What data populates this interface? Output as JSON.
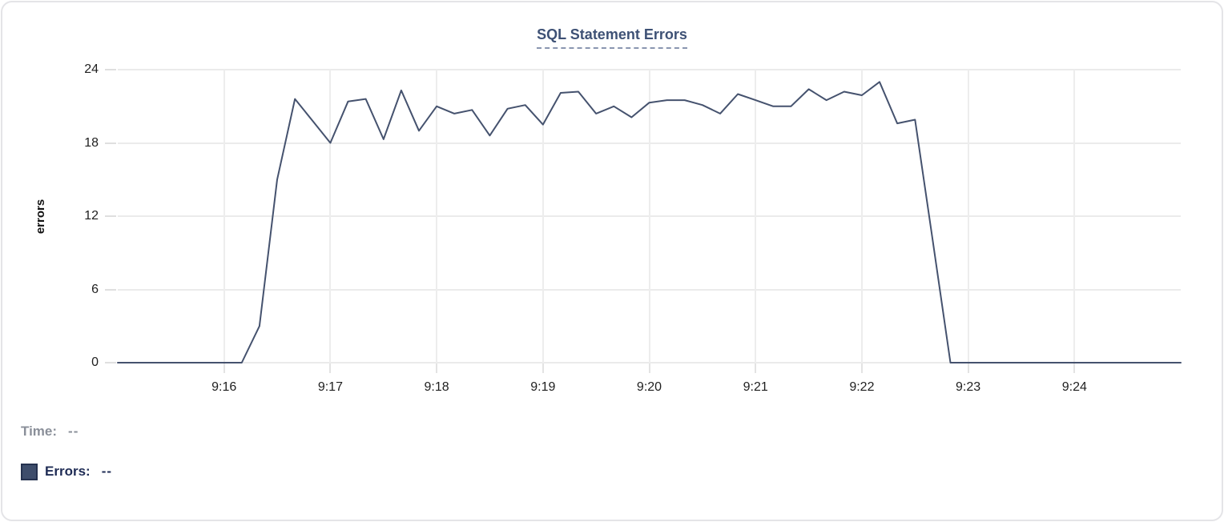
{
  "legend": {
    "time_label": "Time:",
    "time_value": "--",
    "errors_label": "Errors:",
    "errors_value": "--",
    "swatch_color": "#3e4d6b"
  },
  "chart_data": {
    "type": "line",
    "title": "SQL Statement Errors",
    "xlabel": "",
    "ylabel": "errors",
    "ylim": [
      0,
      24
    ],
    "y_tick_labels": [
      "24",
      "18",
      "12",
      "6",
      "0"
    ],
    "y_tick_values": [
      24,
      18,
      12,
      6,
      0
    ],
    "x_tick_labels": [
      "9:16",
      "9:17",
      "9:18",
      "9:19",
      "9:20",
      "9:21",
      "9:22",
      "9:23",
      "9:24"
    ],
    "x_domain": [
      "9:15:00",
      "9:25:00"
    ],
    "grid": true,
    "legend_position": "bottom-left",
    "line_color": "#45526e",
    "series": [
      {
        "name": "Errors",
        "x": [
          "9:15:00",
          "9:15:10",
          "9:15:20",
          "9:15:30",
          "9:15:40",
          "9:15:50",
          "9:16:00",
          "9:16:10",
          "9:16:20",
          "9:16:30",
          "9:16:40",
          "9:16:50",
          "9:17:00",
          "9:17:10",
          "9:17:20",
          "9:17:30",
          "9:17:40",
          "9:17:50",
          "9:18:00",
          "9:18:10",
          "9:18:20",
          "9:18:30",
          "9:18:40",
          "9:18:50",
          "9:19:00",
          "9:19:10",
          "9:19:20",
          "9:19:30",
          "9:19:40",
          "9:19:50",
          "9:20:00",
          "9:20:10",
          "9:20:20",
          "9:20:30",
          "9:20:40",
          "9:20:50",
          "9:21:00",
          "9:21:10",
          "9:21:20",
          "9:21:30",
          "9:21:40",
          "9:21:50",
          "9:22:00",
          "9:22:10",
          "9:22:20",
          "9:22:30",
          "9:22:40",
          "9:22:50",
          "9:23:00",
          "9:23:10",
          "9:23:20",
          "9:23:30",
          "9:23:40",
          "9:23:50",
          "9:24:00",
          "9:24:10",
          "9:24:20",
          "9:24:30",
          "9:24:40",
          "9:24:50",
          "9:25:00"
        ],
        "values": [
          0,
          0,
          0,
          0,
          0,
          0,
          0,
          0,
          3,
          15,
          21.6,
          19.8,
          18,
          21.4,
          21.6,
          18.3,
          22.3,
          19,
          21,
          20.4,
          20.7,
          18.6,
          20.8,
          21.1,
          19.5,
          22.1,
          22.2,
          20.4,
          21,
          20.1,
          21.3,
          21.5,
          21.5,
          21.1,
          20.4,
          22,
          21.5,
          21,
          21,
          22.4,
          21.5,
          22.2,
          21.9,
          23,
          19.6,
          19.9,
          10,
          0,
          0,
          0,
          0,
          0,
          0,
          0,
          0,
          0,
          0,
          0,
          0,
          0,
          0
        ]
      }
    ]
  }
}
